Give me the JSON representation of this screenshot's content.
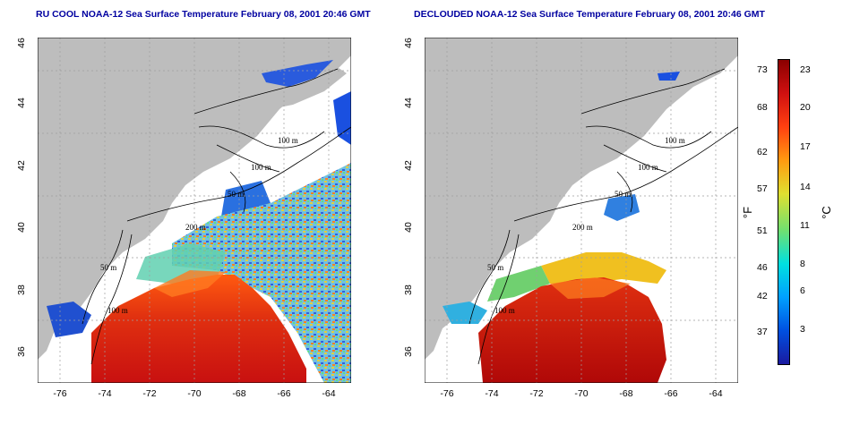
{
  "titles": {
    "left": "RU COOL NOAA-12 Sea Surface Temperature February 08, 2001 20:46 GMT",
    "right": "DECLOUDED NOAA-12 Sea Surface Temperature February 08, 2001 20:46 GMT"
  },
  "axes": {
    "lat_ticks": [
      "36",
      "38",
      "40",
      "42",
      "44",
      "46"
    ],
    "lon_ticks": [
      "-76",
      "-74",
      "-72",
      "-70",
      "-68",
      "-66",
      "-64"
    ],
    "lat_range": [
      35,
      46
    ],
    "lon_range": [
      -77,
      -63
    ]
  },
  "isobaths": {
    "left": [
      "100 m",
      "100 m",
      "50 m",
      "200 m",
      "50 m",
      "100 m"
    ],
    "right": [
      "100 m",
      "100 m",
      "50 m",
      "200 m",
      "50 m",
      "100 m"
    ]
  },
  "colorbar": {
    "fahrenheit_ticks": [
      "73",
      "68",
      "62",
      "57",
      "51",
      "46",
      "42",
      "37"
    ],
    "celsius_ticks": [
      "23",
      "20",
      "17",
      "14",
      "11",
      "8",
      "6",
      "3"
    ],
    "unit_f": "°F",
    "unit_c": "°C",
    "colors": [
      "#1a1aa0",
      "#0050e0",
      "#00a0ff",
      "#00e0e0",
      "#70e070",
      "#e0e030",
      "#ff9a10",
      "#ff4010",
      "#d01010",
      "#8a0000"
    ]
  },
  "colors": {
    "land": "#bdbdbd",
    "ocean_blank": "#ffffff",
    "gulf_stream": "#e03010",
    "cold_shelf": "#1a50e0"
  }
}
